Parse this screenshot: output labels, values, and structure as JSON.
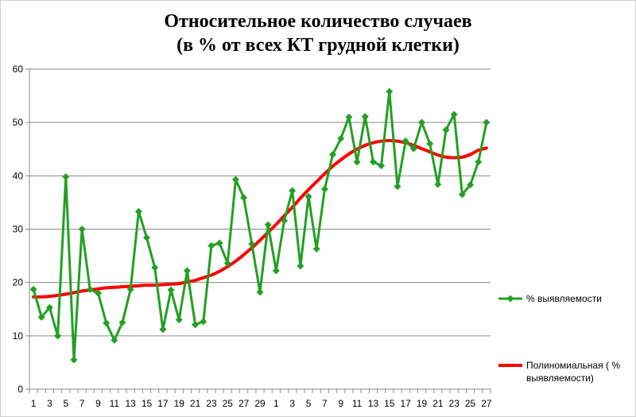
{
  "chart_data": {
    "type": "line",
    "title": [
      "Относительное количество случаев",
      "(в % от всех КТ грудной клетки)"
    ],
    "xlabel": "",
    "ylabel": "",
    "ylim": [
      0,
      60
    ],
    "yticks": [
      0,
      10,
      20,
      30,
      40,
      50,
      60
    ],
    "x_tick_labels": [
      "1",
      "3",
      "5",
      "7",
      "9",
      "11",
      "13",
      "15",
      "17",
      "19",
      "21",
      "23",
      "25",
      "27",
      "29",
      "1",
      "3",
      "5",
      "7",
      "9",
      "11",
      "13",
      "15",
      "17",
      "19",
      "21",
      "23",
      "25",
      "27"
    ],
    "grid": "horizontal",
    "legend_position": "right",
    "series": [
      {
        "name": "% выявляемости",
        "color": "#22a022",
        "marker": "diamond",
        "values": [
          18.7,
          13.5,
          15.3,
          10,
          39.8,
          5.5,
          30,
          18.7,
          18,
          12.4,
          9.2,
          12.5,
          18.7,
          33.3,
          28.4,
          22.8,
          11.2,
          18.6,
          13,
          22.2,
          12.1,
          12.7,
          26.9,
          27.4,
          23.6,
          39.3,
          35.9,
          27.2,
          18.2,
          30.8,
          22.2,
          31.6,
          37.2,
          23.1,
          36.1,
          26.3,
          37.5,
          44,
          47,
          51,
          42.6,
          51.1,
          42.6,
          41.9,
          55.8,
          38,
          46.5,
          45.1,
          50,
          46,
          38.4,
          48.6,
          51.5,
          36.5,
          38.3,
          42.6,
          50
        ]
      },
      {
        "name": "Полиномиальная ( % выявляемости)",
        "color": "#ff0000",
        "style": "smooth-trend",
        "values": [
          17.3,
          17.3,
          17.4,
          17.6,
          17.8,
          18.1,
          18.4,
          18.6,
          18.8,
          19,
          19.1,
          19.2,
          19.3,
          19.4,
          19.5,
          19.5,
          19.6,
          19.7,
          19.8,
          20.1,
          20.4,
          20.9,
          21.4,
          22.1,
          23,
          24,
          25.2,
          26.5,
          27.9,
          29.4,
          30.9,
          32.5,
          34.1,
          35.8,
          37.4,
          38.9,
          40.4,
          41.8,
          43,
          44.1,
          45,
          45.7,
          46.2,
          46.5,
          46.6,
          46.5,
          46.2,
          45.7,
          45.1,
          44.5,
          43.9,
          43.5,
          43.4,
          43.5,
          44,
          44.8,
          45.2
        ]
      }
    ]
  }
}
